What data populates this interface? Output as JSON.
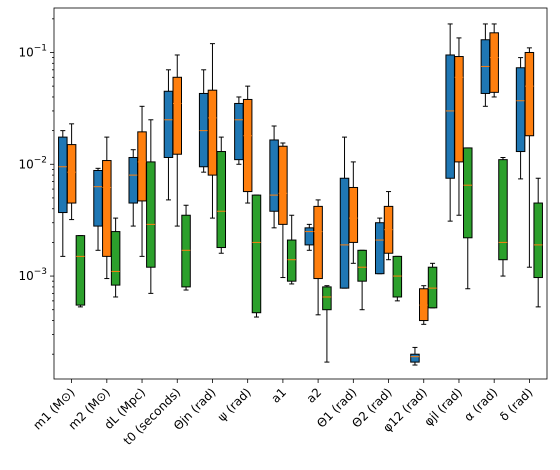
{
  "chart_data": {
    "type": "box",
    "yscale": "log",
    "ylim": [
      0.00012,
      0.25
    ],
    "yticks": [
      {
        "value": 0.001,
        "label": "10−3"
      },
      {
        "value": 0.01,
        "label": "10−2"
      },
      {
        "value": 0.1,
        "label": "10−1"
      }
    ],
    "categories": [
      "m1 (M⊙)",
      "m2 (M⊙)",
      "dL (Mpc)",
      "t0 (seconds)",
      "Θjn (rad)",
      "ψ (rad)",
      "a1",
      "a2",
      "Θ1 (rad)",
      "Θ2 (rad)",
      "φ12 (rad)",
      "φjl (rad)",
      "α (rad)",
      "δ (rad)"
    ],
    "series": [
      {
        "color": "#1f77b4",
        "boxes": [
          {
            "whislo": 0.0015,
            "q1": 0.0037,
            "med": 0.0095,
            "q3": 0.0175,
            "whishi": 0.02
          },
          {
            "whislo": 0.0017,
            "q1": 0.0028,
            "med": 0.0063,
            "q3": 0.0088,
            "whishi": 0.0092
          },
          {
            "whislo": 0.0028,
            "q1": 0.0045,
            "med": 0.008,
            "q3": 0.0115,
            "whishi": 0.0135
          },
          {
            "whislo": 0.0048,
            "q1": 0.0115,
            "med": 0.025,
            "q3": 0.045,
            "whishi": 0.07
          },
          {
            "whislo": 0.0085,
            "q1": 0.0095,
            "med": 0.02,
            "q3": 0.043,
            "whishi": 0.07
          },
          {
            "whislo": 0.01,
            "q1": 0.011,
            "med": 0.025,
            "q3": 0.035,
            "whishi": 0.04
          },
          {
            "whislo": 0.0027,
            "q1": 0.0038,
            "med": 0.0053,
            "q3": 0.0165,
            "whishi": 0.022
          },
          {
            "whislo": 0.0017,
            "q1": 0.0019,
            "med": 0.0025,
            "q3": 0.0027,
            "whishi": 0.0029
          },
          {
            "whislo": 0.00078,
            "q1": 0.00078,
            "med": 0.0019,
            "q3": 0.0075,
            "whishi": 0.0175
          },
          {
            "whislo": 0.00105,
            "q1": 0.00105,
            "med": 0.0021,
            "q3": 0.003,
            "whishi": 0.0033
          },
          {
            "whislo": 0.00016,
            "q1": 0.00017,
            "med": 0.00019,
            "q3": 0.0002,
            "whishi": 0.00023
          },
          {
            "whislo": 0.0031,
            "q1": 0.0075,
            "med": 0.03,
            "q3": 0.095,
            "whishi": 0.18
          },
          {
            "whislo": 0.033,
            "q1": 0.043,
            "med": 0.075,
            "q3": 0.13,
            "whishi": 0.18
          },
          {
            "whislo": 0.0074,
            "q1": 0.013,
            "med": 0.037,
            "q3": 0.073,
            "whishi": 0.09
          }
        ]
      },
      {
        "color": "#ff7f0e",
        "boxes": [
          {
            "whislo": 0.0032,
            "q1": 0.0045,
            "med": 0.0085,
            "q3": 0.015,
            "whishi": 0.023
          },
          {
            "whislo": 0.00095,
            "q1": 0.0015,
            "med": 0.0062,
            "q3": 0.0108,
            "whishi": 0.0175
          },
          {
            "whislo": 0.0015,
            "q1": 0.0047,
            "med": 0.0105,
            "q3": 0.0195,
            "whishi": 0.033
          },
          {
            "whislo": 0.0028,
            "q1": 0.0123,
            "med": 0.035,
            "q3": 0.06,
            "whishi": 0.095
          },
          {
            "whislo": 0.0033,
            "q1": 0.008,
            "med": 0.026,
            "q3": 0.046,
            "whishi": 0.12
          },
          {
            "whislo": 0.0045,
            "q1": 0.0057,
            "med": 0.018,
            "q3": 0.038,
            "whishi": 0.05
          },
          {
            "whislo": 0.00097,
            "q1": 0.0029,
            "med": 0.0055,
            "q3": 0.0145,
            "whishi": 0.0155
          },
          {
            "whislo": 0.00045,
            "q1": 0.00095,
            "med": 0.0025,
            "q3": 0.0042,
            "whishi": 0.0048
          },
          {
            "whislo": 0.0013,
            "q1": 0.002,
            "med": 0.0033,
            "q3": 0.0062,
            "whishi": 0.0105
          },
          {
            "whislo": 0.0014,
            "q1": 0.0016,
            "med": 0.0026,
            "q3": 0.0042,
            "whishi": 0.0057
          },
          {
            "whislo": 0.00037,
            "q1": 0.0004,
            "med": 0.00055,
            "q3": 0.00077,
            "whishi": 0.00082
          },
          {
            "whislo": 0.0035,
            "q1": 0.0105,
            "med": 0.06,
            "q3": 0.092,
            "whishi": 0.135
          },
          {
            "whislo": 0.04,
            "q1": 0.044,
            "med": 0.09,
            "q3": 0.15,
            "whishi": 0.18
          },
          {
            "whislo": 0.0012,
            "q1": 0.018,
            "med": 0.05,
            "q3": 0.1,
            "whishi": 0.11
          }
        ]
      },
      {
        "color": "#2ca02c",
        "boxes": [
          {
            "whislo": 0.00053,
            "q1": 0.00055,
            "med": 0.0015,
            "q3": 0.0023,
            "whishi": 0.0023
          },
          {
            "whislo": 0.00065,
            "q1": 0.00083,
            "med": 0.0011,
            "q3": 0.0025,
            "whishi": 0.0033
          },
          {
            "whislo": 0.0007,
            "q1": 0.0012,
            "med": 0.0029,
            "q3": 0.0105,
            "whishi": 0.025
          },
          {
            "whislo": 0.00075,
            "q1": 0.0008,
            "med": 0.0017,
            "q3": 0.0035,
            "whishi": 0.0043
          },
          {
            "whislo": 0.0016,
            "q1": 0.0018,
            "med": 0.0038,
            "q3": 0.013,
            "whishi": 0.0175
          },
          {
            "whislo": 0.00043,
            "q1": 0.00047,
            "med": 0.002,
            "q3": 0.0053,
            "whishi": 0.0053
          },
          {
            "whislo": 0.00085,
            "q1": 0.0009,
            "med": 0.0014,
            "q3": 0.0021,
            "whishi": 0.0035
          },
          {
            "whislo": 0.00017,
            "q1": 0.0005,
            "med": 0.00065,
            "q3": 0.0008,
            "whishi": 0.00082
          },
          {
            "whislo": 0.0005,
            "q1": 0.0009,
            "med": 0.0012,
            "q3": 0.0017,
            "whishi": 0.0017
          },
          {
            "whislo": 0.0006,
            "q1": 0.00065,
            "med": 0.001,
            "q3": 0.0015,
            "whishi": 0.0015
          },
          {
            "whislo": 0.00052,
            "q1": 0.00052,
            "med": 0.00078,
            "q3": 0.0012,
            "whishi": 0.0013
          },
          {
            "whislo": 0.00077,
            "q1": 0.0022,
            "med": 0.0065,
            "q3": 0.014,
            "whishi": 0.014
          },
          {
            "whislo": 0.001,
            "q1": 0.0014,
            "med": 0.002,
            "q3": 0.011,
            "whishi": 0.0115
          },
          {
            "whislo": 0.00053,
            "q1": 0.00097,
            "med": 0.0019,
            "q3": 0.0045,
            "whishi": 0.0075
          }
        ]
      }
    ],
    "median_color": "#ff7f0e",
    "grid": false,
    "legend": false
  }
}
